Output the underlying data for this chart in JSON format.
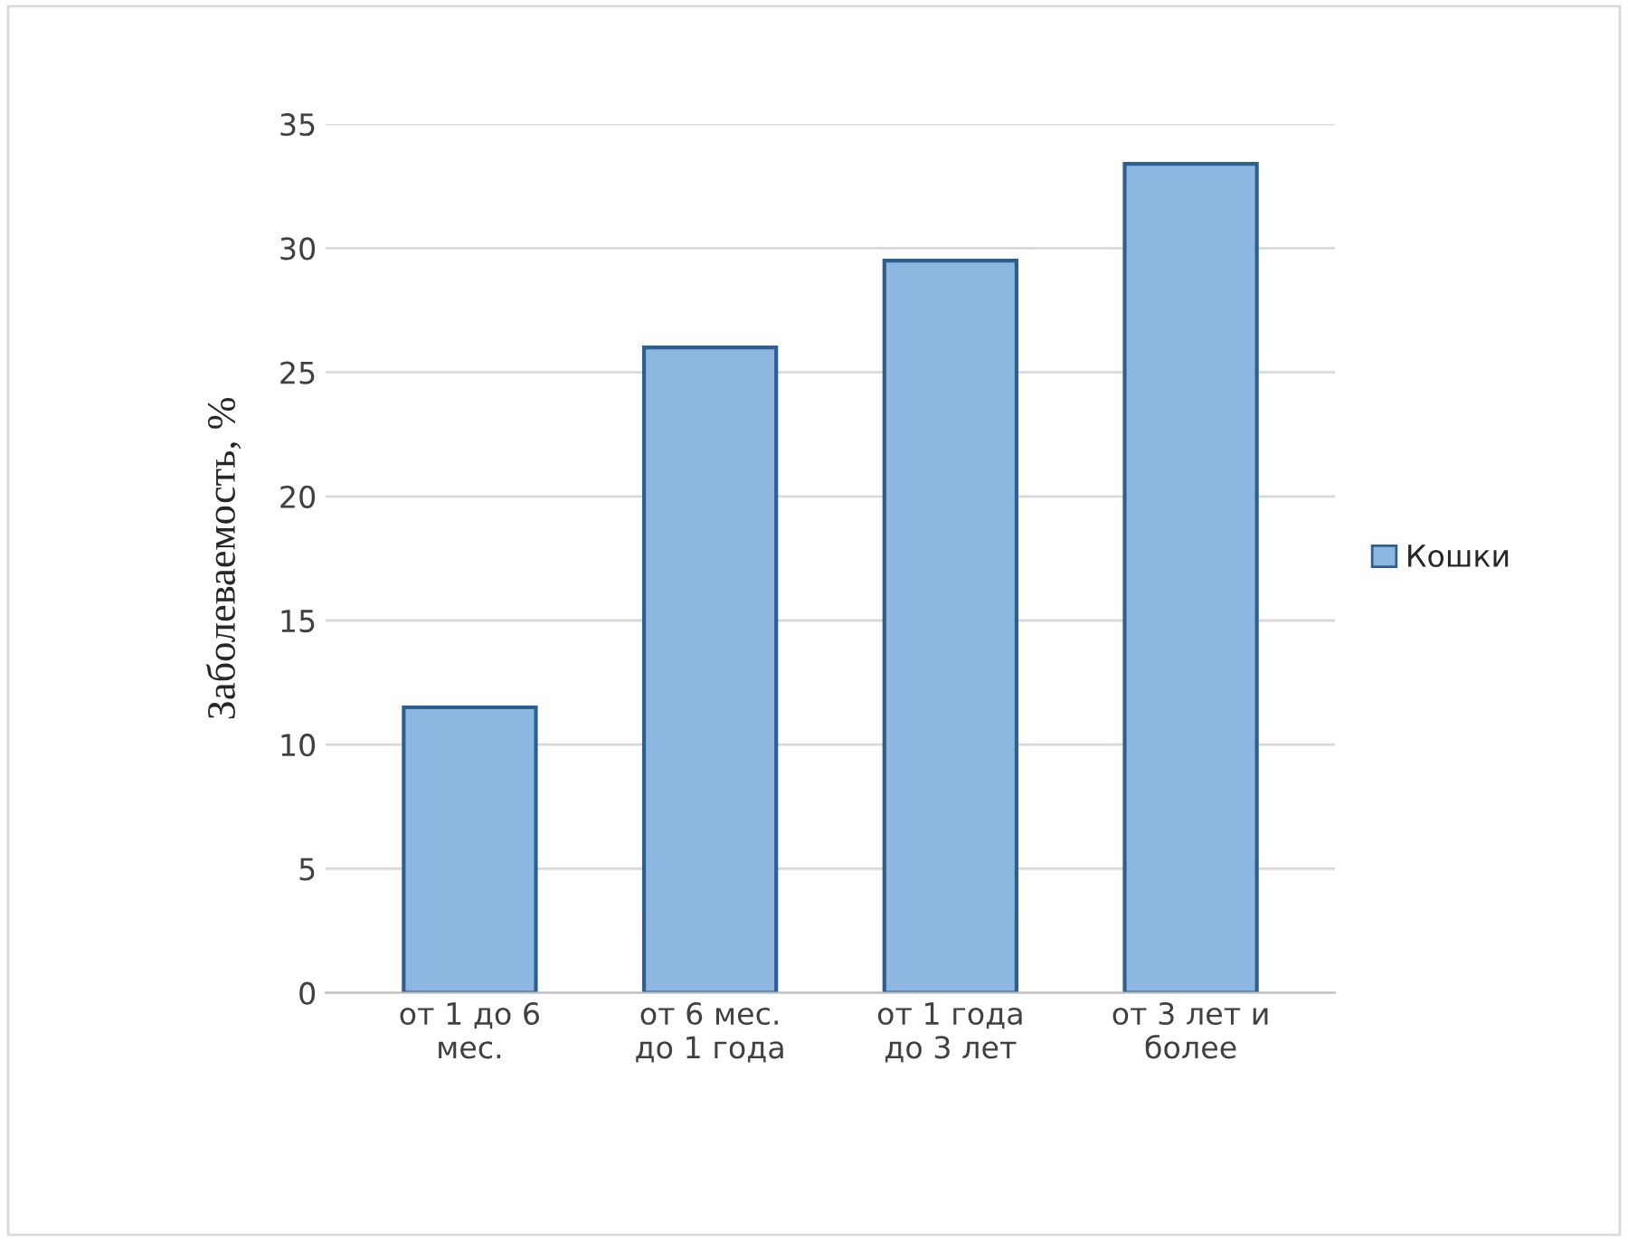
{
  "chart_data": {
    "type": "bar",
    "categories": [
      "от 1 до 6\nмес.",
      "от 6 мес.\nдо 1 года",
      "от 1 года\nдо 3 лет",
      "от 3 лет и\nболее"
    ],
    "series": [
      {
        "name": "Кошки",
        "color": "#8db6e0",
        "values": [
          11.5,
          26,
          29.5,
          33.4
        ]
      }
    ],
    "ylabel": "Заболеваемость, %",
    "ylim": [
      0,
      35
    ],
    "yticks": [
      0,
      5,
      10,
      15,
      20,
      25,
      30,
      35
    ],
    "grid": "y",
    "legend": "right"
  }
}
